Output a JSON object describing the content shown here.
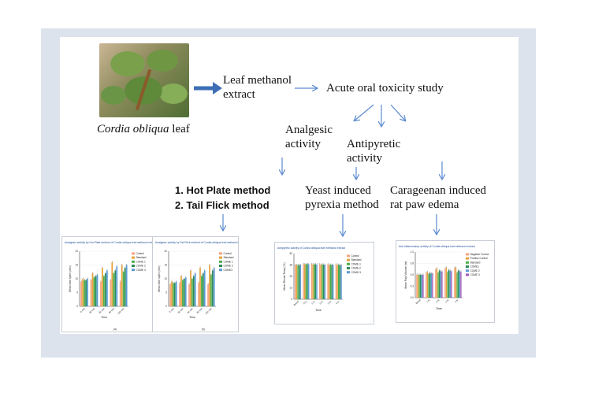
{
  "plant": {
    "name_italic": "Cordia obliqua",
    "name_rest": " leaf"
  },
  "extract": {
    "line1": "Leaf methanol",
    "line2": "extract"
  },
  "toxicity": "Acute oral toxicity study",
  "activities": {
    "analgesic": {
      "line1": "Analgesic",
      "line2": "activity"
    },
    "antipyretic": {
      "line1": "Antipyretic",
      "line2": "activity"
    }
  },
  "methods": {
    "analgesic": [
      "1.   Hot Plate method",
      "2.   Tail Flick method"
    ],
    "antipyretic": {
      "line1": "Yeast induced",
      "line2": "pyrexia method"
    },
    "antiinflammatory": {
      "line1": "Carageenan induced",
      "line2": "rat paw edema"
    }
  },
  "chart_data": [
    {
      "type": "bar",
      "title": "Analgesic activity by Hot Plate method of Cordia obliqua leaf methanol extract",
      "ylabel": "Mean time spent (min)",
      "xlabel": "Time",
      "ylim": [
        0,
        20
      ],
      "categories": [
        "0 min",
        "30 min",
        "60 min",
        "90 min",
        "120 min"
      ],
      "series": [
        {
          "name": "Control",
          "values": [
            9,
            9.5,
            9,
            9.5,
            9
          ]
        },
        {
          "name": "Standard",
          "values": [
            10,
            12,
            14,
            16,
            15
          ]
        },
        {
          "name": "COME 1",
          "values": [
            9.5,
            10.5,
            11,
            12,
            12.5
          ]
        },
        {
          "name": "COME 2",
          "values": [
            9.5,
            11,
            12,
            13,
            14
          ]
        },
        {
          "name": "COME 3",
          "values": [
            10,
            11.5,
            13,
            14.5,
            15
          ]
        }
      ],
      "caption": "(a)"
    },
    {
      "type": "bar",
      "title": "Analgesic activity by Tail Flick method of Cordia obliqua leaf methanol extract",
      "ylabel": "Mean time spent (sec)",
      "xlabel": "Time",
      "ylim": [
        0,
        20
      ],
      "categories": [
        "0 min",
        "30 min",
        "60 min",
        "90 min",
        "120 min"
      ],
      "series": [
        {
          "name": "Control",
          "values": [
            8,
            8.5,
            8,
            8.5,
            8
          ]
        },
        {
          "name": "Standard",
          "values": [
            9,
            11,
            13,
            14,
            15
          ]
        },
        {
          "name": "COME 1",
          "values": [
            8.5,
            9.5,
            10,
            11,
            11.5
          ]
        },
        {
          "name": "COME 2",
          "values": [
            8.5,
            10,
            11,
            12,
            13
          ]
        },
        {
          "name": "COME3",
          "values": [
            9,
            10.5,
            12,
            13,
            14
          ]
        }
      ],
      "caption": "(b)"
    },
    {
      "type": "bar",
      "title": "Antipyretic activity of Cordia obliqua leaf methanol extract",
      "ylabel": "Mean Rectal Temp (°C)",
      "xlabel": "Time",
      "ylim": [
        0,
        50
      ],
      "categories": [
        "Basal",
        "0 hr",
        "1 hr",
        "2 hr",
        "3 hr",
        "4 hr"
      ],
      "series": [
        {
          "name": "Control",
          "values": [
            37.5,
            38.5,
            38.6,
            38.5,
            38.5,
            38.4
          ]
        },
        {
          "name": "Standard",
          "values": [
            37.4,
            38.4,
            38,
            37.6,
            37.4,
            37.2
          ]
        },
        {
          "name": "COME-1",
          "values": [
            37.5,
            38.5,
            38.3,
            38.1,
            37.9,
            37.8
          ]
        },
        {
          "name": "COME-2",
          "values": [
            37.4,
            38.4,
            38.2,
            37.9,
            37.7,
            37.5
          ]
        },
        {
          "name": "COME-3",
          "values": [
            37.5,
            38.5,
            38.1,
            37.8,
            37.5,
            37.3
          ]
        }
      ]
    },
    {
      "type": "bar",
      "title": "Anti-inflammatory activity of Cordia obliqua leaf methanol extract",
      "ylabel": "Mean Paw Volume (ml)",
      "xlabel": "Time",
      "ylim": [
        0,
        1.0
      ],
      "categories": [
        "Basal",
        "1 hr",
        "2 hr",
        "3 hr",
        "4 hr"
      ],
      "series": [
        {
          "name": "Negative Control",
          "values": [
            0.5,
            0.55,
            0.62,
            0.64,
            0.65
          ]
        },
        {
          "name": "Positive Control",
          "values": [
            0.5,
            0.56,
            0.64,
            0.66,
            0.66
          ]
        },
        {
          "name": "Standard",
          "values": [
            0.5,
            0.52,
            0.55,
            0.56,
            0.55
          ]
        },
        {
          "name": "COME1",
          "values": [
            0.5,
            0.54,
            0.6,
            0.61,
            0.6
          ]
        },
        {
          "name": "COME 2",
          "values": [
            0.5,
            0.53,
            0.58,
            0.59,
            0.58
          ]
        },
        {
          "name": "COME 3",
          "values": [
            0.5,
            0.53,
            0.57,
            0.58,
            0.57
          ]
        }
      ]
    }
  ],
  "colors": {
    "arrow_main": "#3e6fb6",
    "arrow_thin": "#5b8ad0",
    "series": [
      "#f4a582",
      "#e6a23c",
      "#4daf4a",
      "#2e8b57",
      "#5b9bd5",
      "#9e5bb5"
    ]
  }
}
